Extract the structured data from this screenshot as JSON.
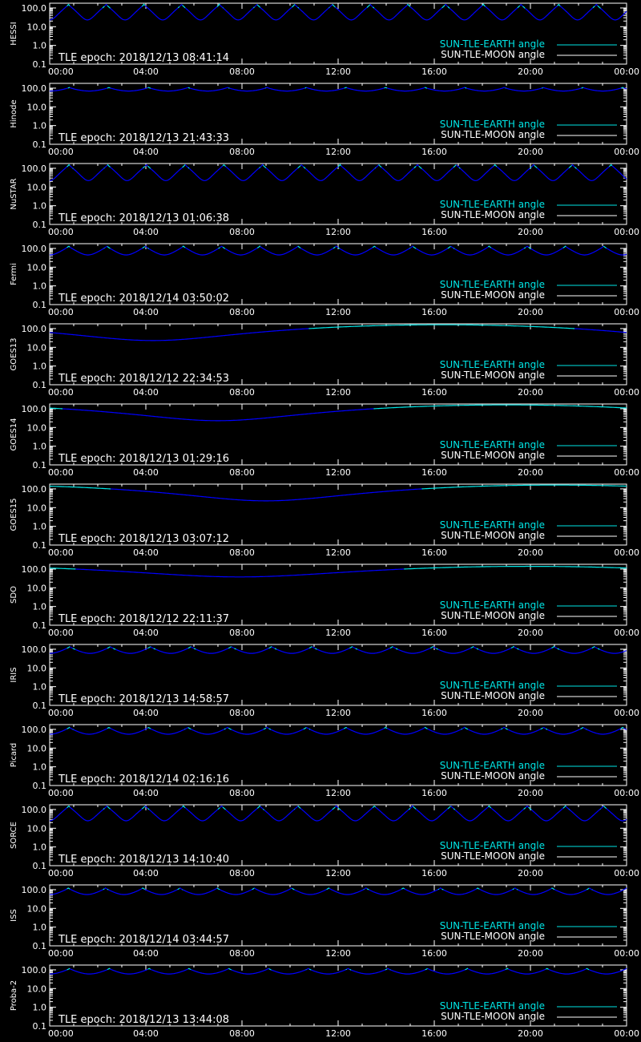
{
  "colors": {
    "background": "#000000",
    "axes": "#ffffff",
    "earth_line": "#00e5e5",
    "moon_line": "#ffffff",
    "dip_line": "#0000ff"
  },
  "legend": {
    "earth_label": "SUN-TLE-EARTH angle",
    "moon_label": "SUN-TLE-MOON angle"
  },
  "chart_data": [
    {
      "type": "line",
      "ylabel": "HESSI",
      "annotation": "TLE epoch: 2018/12/13 08:41:14",
      "yscale": "log",
      "ylim": [
        0.1,
        180
      ],
      "y_ticks": [
        "0.1",
        "1.0",
        "10.0",
        "100.0"
      ],
      "x_ticks": [
        "00:00",
        "04:00",
        "08:00",
        "12:00",
        "16:00",
        "20:00",
        "00:00"
      ],
      "xlim_hours": [
        0,
        24
      ],
      "series": [
        {
          "name": "SUN-TLE-EARTH angle",
          "values": []
        },
        {
          "name": "SUN-TLE-MOON angle",
          "values": []
        }
      ],
      "orbits_per_day": 15.3,
      "y_min_deg": 23,
      "y_max_deg": 160
    },
    {
      "type": "line",
      "ylabel": "Hinode",
      "annotation": "TLE epoch: 2018/12/13 21:43:33",
      "yscale": "log",
      "ylim": [
        0.1,
        180
      ],
      "y_ticks": [
        "0.1",
        "1.0",
        "10.0",
        "100.0"
      ],
      "x_ticks": [
        "00:00",
        "04:00",
        "08:00",
        "12:00",
        "16:00",
        "20:00",
        "00:00"
      ],
      "xlim_hours": [
        0,
        24
      ],
      "series": [
        {
          "name": "SUN-TLE-EARTH angle",
          "values": []
        },
        {
          "name": "SUN-TLE-MOON angle",
          "values": []
        }
      ],
      "orbits_per_day": 14.6,
      "y_min_deg": 70,
      "y_max_deg": 110
    },
    {
      "type": "line",
      "ylabel": "NuSTAR",
      "annotation": "TLE epoch: 2018/12/13 01:06:38",
      "yscale": "log",
      "ylim": [
        0.1,
        180
      ],
      "y_ticks": [
        "0.1",
        "1.0",
        "10.0",
        "100.0"
      ],
      "x_ticks": [
        "00:00",
        "04:00",
        "08:00",
        "12:00",
        "16:00",
        "20:00",
        "00:00"
      ],
      "xlim_hours": [
        0,
        24
      ],
      "series": [
        {
          "name": "SUN-TLE-EARTH angle",
          "values": []
        },
        {
          "name": "SUN-TLE-MOON angle",
          "values": []
        }
      ],
      "orbits_per_day": 14.9,
      "y_min_deg": 22,
      "y_max_deg": 160
    },
    {
      "type": "line",
      "ylabel": "Fermi",
      "annotation": "TLE epoch: 2018/12/14 03:50:02",
      "yscale": "log",
      "ylim": [
        0.1,
        180
      ],
      "y_ticks": [
        "0.1",
        "1.0",
        "10.0",
        "100.0"
      ],
      "x_ticks": [
        "00:00",
        "04:00",
        "08:00",
        "12:00",
        "16:00",
        "20:00",
        "00:00"
      ],
      "xlim_hours": [
        0,
        24
      ],
      "series": [
        {
          "name": "SUN-TLE-EARTH angle",
          "values": []
        },
        {
          "name": "SUN-TLE-MOON angle",
          "values": []
        }
      ],
      "orbits_per_day": 15.1,
      "y_min_deg": 45,
      "y_max_deg": 135
    },
    {
      "type": "line",
      "ylabel": "GOES13",
      "annotation": "TLE epoch: 2018/12/12 22:34:53",
      "yscale": "log",
      "ylim": [
        0.1,
        180
      ],
      "y_ticks": [
        "0.1",
        "1.0",
        "10.0",
        "100.0"
      ],
      "x_ticks": [
        "00:00",
        "04:00",
        "08:00",
        "12:00",
        "16:00",
        "20:00",
        "00:00"
      ],
      "xlim_hours": [
        0,
        24
      ],
      "series": [
        {
          "name": "SUN-TLE-EARTH angle",
          "values": []
        },
        {
          "name": "SUN-TLE-MOON angle",
          "values": []
        }
      ],
      "orbits_per_day": 1.0,
      "min_hour": 4.3,
      "y_min_deg": 23,
      "y_max_deg": 160
    },
    {
      "type": "line",
      "ylabel": "GOES14",
      "annotation": "TLE epoch: 2018/12/13 01:29:16",
      "yscale": "log",
      "ylim": [
        0.1,
        180
      ],
      "y_ticks": [
        "0.1",
        "1.0",
        "10.0",
        "100.0"
      ],
      "x_ticks": [
        "00:00",
        "04:00",
        "08:00",
        "12:00",
        "16:00",
        "20:00",
        "00:00"
      ],
      "xlim_hours": [
        0,
        24
      ],
      "series": [
        {
          "name": "SUN-TLE-EARTH angle",
          "values": []
        },
        {
          "name": "SUN-TLE-MOON angle",
          "values": []
        }
      ],
      "orbits_per_day": 1.0,
      "min_hour": 7.0,
      "y_min_deg": 23,
      "y_max_deg": 160
    },
    {
      "type": "line",
      "ylabel": "GOES15",
      "annotation": "TLE epoch: 2018/12/13 03:07:12",
      "yscale": "log",
      "ylim": [
        0.1,
        180
      ],
      "y_ticks": [
        "0.1",
        "1.0",
        "10.0",
        "100.0"
      ],
      "x_ticks": [
        "00:00",
        "04:00",
        "08:00",
        "12:00",
        "16:00",
        "20:00",
        "00:00"
      ],
      "xlim_hours": [
        0,
        24
      ],
      "series": [
        {
          "name": "SUN-TLE-EARTH angle",
          "values": []
        },
        {
          "name": "SUN-TLE-MOON angle",
          "values": []
        }
      ],
      "orbits_per_day": 1.0,
      "min_hour": 9.0,
      "y_min_deg": 23,
      "y_max_deg": 160
    },
    {
      "type": "line",
      "ylabel": "SDO",
      "annotation": "TLE epoch: 2018/12/12 22:11:37",
      "yscale": "log",
      "ylim": [
        0.1,
        180
      ],
      "y_ticks": [
        "0.1",
        "1.0",
        "10.0",
        "100.0"
      ],
      "x_ticks": [
        "00:00",
        "04:00",
        "08:00",
        "12:00",
        "16:00",
        "20:00",
        "00:00"
      ],
      "xlim_hours": [
        0,
        24
      ],
      "series": [
        {
          "name": "SUN-TLE-EARTH angle",
          "values": []
        },
        {
          "name": "SUN-TLE-MOON angle",
          "values": []
        }
      ],
      "orbits_per_day": 1.0,
      "min_hour": 7.9,
      "y_min_deg": 38,
      "y_max_deg": 140
    },
    {
      "type": "line",
      "ylabel": "IRIS",
      "annotation": "TLE epoch: 2018/12/13 14:58:57",
      "yscale": "log",
      "ylim": [
        0.1,
        180
      ],
      "y_ticks": [
        "0.1",
        "1.0",
        "10.0",
        "100.0"
      ],
      "x_ticks": [
        "00:00",
        "04:00",
        "08:00",
        "12:00",
        "16:00",
        "20:00",
        "00:00"
      ],
      "xlim_hours": [
        0,
        24
      ],
      "series": [
        {
          "name": "SUN-TLE-EARTH angle",
          "values": []
        },
        {
          "name": "SUN-TLE-MOON angle",
          "values": []
        }
      ],
      "orbits_per_day": 14.3,
      "y_min_deg": 60,
      "y_max_deg": 140
    },
    {
      "type": "line",
      "ylabel": "Picard",
      "annotation": "TLE epoch: 2018/12/14 02:16:16",
      "yscale": "log",
      "ylim": [
        0.1,
        180
      ],
      "y_ticks": [
        "0.1",
        "1.0",
        "10.0",
        "100.0"
      ],
      "x_ticks": [
        "00:00",
        "04:00",
        "08:00",
        "12:00",
        "16:00",
        "20:00",
        "00:00"
      ],
      "xlim_hours": [
        0,
        24
      ],
      "series": [
        {
          "name": "SUN-TLE-EARTH angle",
          "values": []
        },
        {
          "name": "SUN-TLE-MOON angle",
          "values": []
        }
      ],
      "orbits_per_day": 14.6,
      "y_min_deg": 55,
      "y_max_deg": 130
    },
    {
      "type": "line",
      "ylabel": "SORCE",
      "annotation": "TLE epoch: 2018/12/13 14:10:40",
      "yscale": "log",
      "ylim": [
        0.1,
        180
      ],
      "y_ticks": [
        "0.1",
        "1.0",
        "10.0",
        "100.0"
      ],
      "x_ticks": [
        "00:00",
        "04:00",
        "08:00",
        "12:00",
        "16:00",
        "20:00",
        "00:00"
      ],
      "xlim_hours": [
        0,
        24
      ],
      "series": [
        {
          "name": "SUN-TLE-EARTH angle",
          "values": []
        },
        {
          "name": "SUN-TLE-MOON angle",
          "values": []
        }
      ],
      "orbits_per_day": 15.1,
      "y_min_deg": 25,
      "y_max_deg": 160
    },
    {
      "type": "line",
      "ylabel": "ISS",
      "annotation": "TLE epoch: 2018/12/14 03:44:57",
      "yscale": "log",
      "ylim": [
        0.1,
        180
      ],
      "y_ticks": [
        "0.1",
        "1.0",
        "10.0",
        "100.0"
      ],
      "x_ticks": [
        "00:00",
        "04:00",
        "08:00",
        "12:00",
        "16:00",
        "20:00",
        "00:00"
      ],
      "xlim_hours": [
        0,
        24
      ],
      "series": [
        {
          "name": "SUN-TLE-EARTH angle",
          "values": []
        },
        {
          "name": "SUN-TLE-MOON angle",
          "values": []
        }
      ],
      "orbits_per_day": 15.5,
      "y_min_deg": 55,
      "y_max_deg": 125
    },
    {
      "type": "line",
      "ylabel": "Proba-2",
      "annotation": "TLE epoch: 2018/12/13 13:44:08",
      "yscale": "log",
      "ylim": [
        0.1,
        180
      ],
      "y_ticks": [
        "0.1",
        "1.0",
        "10.0",
        "100.0"
      ],
      "x_ticks": [
        "00:00",
        "04:00",
        "08:00",
        "12:00",
        "16:00",
        "20:00",
        "00:00"
      ],
      "xlim_hours": [
        0,
        24
      ],
      "series": [
        {
          "name": "SUN-TLE-EARTH angle",
          "values": []
        },
        {
          "name": "SUN-TLE-MOON angle",
          "values": []
        }
      ],
      "orbits_per_day": 14.5,
      "y_min_deg": 60,
      "y_max_deg": 120
    }
  ]
}
